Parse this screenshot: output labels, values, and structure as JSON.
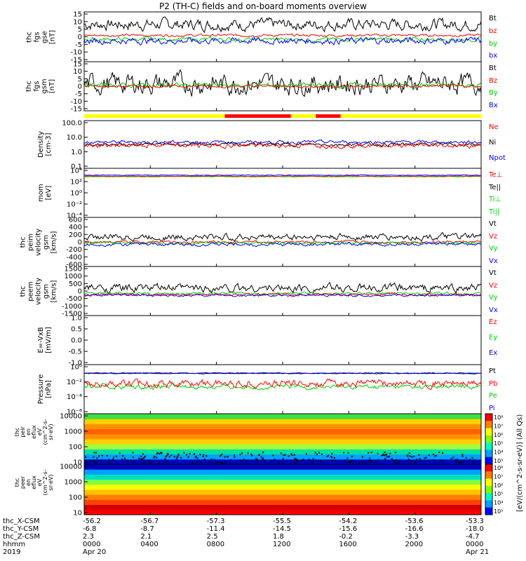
{
  "title": "P2 (TH-C) fields and on-board moments overview",
  "colors": {
    "black": "#000000",
    "red": "#ff0000",
    "green": "#00d000",
    "blue": "#0000ff",
    "yellow": "#ffff00"
  },
  "panels": [
    {
      "id": "fgs_gse",
      "ylabel": "thc\nfgs\ngse\n[nT]",
      "ticks": [
        "15",
        "10",
        "5",
        "0",
        "-5",
        "-10",
        "-15"
      ],
      "legend": [
        {
          "t": "Bt",
          "c": "black"
        },
        {
          "t": "bz",
          "c": "red"
        },
        {
          "t": "by",
          "c": "green"
        },
        {
          "t": "bx",
          "c": "blue"
        }
      ]
    },
    {
      "id": "fgs_gsm",
      "ylabel": "thc\nfgs\ngsm\n[nT]",
      "ticks": [
        "15",
        "10",
        "5",
        "0",
        "-5",
        "-10",
        "-15"
      ],
      "legend": [
        {
          "t": "Bt",
          "c": "black"
        },
        {
          "t": "Bz",
          "c": "red"
        },
        {
          "t": "By",
          "c": "green"
        },
        {
          "t": "Bx",
          "c": "blue"
        }
      ]
    },
    {
      "id": "density",
      "ylabel": "Density\n[cm-3]",
      "ticks": [
        "100.0",
        "10.0",
        "1.0",
        "0.1"
      ],
      "legend": [
        {
          "t": "Ne",
          "c": "red"
        },
        {
          "t": "Ni",
          "c": "black"
        },
        {
          "t": "Npot",
          "c": "blue"
        }
      ]
    },
    {
      "id": "temp",
      "ylabel": "mom\n[eV]",
      "ticks": [
        "10⁴",
        "10²",
        "10⁰",
        "10⁻²",
        "10⁻⁴"
      ],
      "legend": [
        {
          "t": "Te⊥",
          "c": "red"
        },
        {
          "t": "Te||",
          "c": "black"
        },
        {
          "t": "Ti⊥",
          "c": "green"
        },
        {
          "t": "Ti||",
          "c": "green"
        }
      ]
    },
    {
      "id": "peim_vel",
      "ylabel": "thc\npeim\nvelocity\ngsm\n[km/s]",
      "ticks": [
        "600",
        "400",
        "200",
        "0",
        "-200",
        "-400",
        "-600"
      ],
      "legend": [
        {
          "t": "Vt",
          "c": "black"
        },
        {
          "t": "Vz",
          "c": "red"
        },
        {
          "t": "Vy",
          "c": "green"
        },
        {
          "t": "Vx",
          "c": "blue"
        }
      ]
    },
    {
      "id": "peem_vel",
      "ylabel": "thc\npeem\nvelocity\ngsm\n[km/s]",
      "ticks": [
        "1500",
        "1000",
        "500",
        "0",
        "-500",
        "-1000",
        "-1500"
      ],
      "legend": [
        {
          "t": "Vt",
          "c": "black"
        },
        {
          "t": "Vz",
          "c": "red"
        },
        {
          "t": "Vy",
          "c": "green"
        },
        {
          "t": "Vx",
          "c": "blue"
        }
      ]
    },
    {
      "id": "efield",
      "ylabel": "E=-VxB\n[mV/m]",
      "ticks": [
        "1.0",
        "0.5",
        "0.0",
        "-0.5",
        "-1.0"
      ],
      "legend": [
        {
          "t": "Ez",
          "c": "red"
        },
        {
          "t": "Ey",
          "c": "green"
        },
        {
          "t": "Ex",
          "c": "blue"
        }
      ]
    },
    {
      "id": "pressure",
      "ylabel": "Pressure\n[nPa]",
      "ticks": [
        "10⁰",
        "10⁻²",
        "10⁻⁴",
        "10⁻⁶"
      ],
      "legend": [
        {
          "t": "Pt",
          "c": "black"
        },
        {
          "t": "Pb",
          "c": "red"
        },
        {
          "t": "Pe",
          "c": "green"
        },
        {
          "t": "Pi",
          "c": "blue"
        }
      ]
    },
    {
      "id": "peir",
      "ylabel": "thc\npeir\nen\neflux\neV\n(cm^2-s-\nsr-eV)",
      "ticks": [
        "10000",
        "1000",
        "100",
        "10"
      ],
      "legend": []
    },
    {
      "id": "peer",
      "ylabel": "thc\npeer\nen\neflux\neV\n(cm^2-s-\nsr-eV)",
      "ticks": [
        "10000",
        "1000",
        "100",
        "10"
      ],
      "legend": []
    }
  ],
  "colorbar": {
    "label": "[eV/(cm^2-s-sr-eV)] (All Qs)",
    "ticks": [
      "10⁸",
      "10⁷",
      "10⁶",
      "10⁵",
      "10⁴",
      "10³"
    ]
  },
  "footer": {
    "row_labels": [
      "thc_X-CSM",
      "thc_Y-CSM",
      "thc_Z-CSM",
      "hhmm",
      "2019"
    ],
    "columns": [
      [
        "-56.2",
        "-6.8",
        "2.3",
        "0000",
        "Apr 20"
      ],
      [
        "-56.7",
        "-8.7",
        "2.1",
        "0400",
        ""
      ],
      [
        "-57.3",
        "-11.4",
        "2.5",
        "0800",
        ""
      ],
      [
        "-55.5",
        "-14.5",
        "1.8",
        "1200",
        ""
      ],
      [
        "-54.2",
        "-15.6",
        "-0.2",
        "1600",
        ""
      ],
      [
        "-53.6",
        "-16.6",
        "-3.3",
        "2000",
        ""
      ],
      [
        "-53.3",
        "-18.0",
        "-4.7",
        "0000",
        "Apr 21"
      ]
    ]
  },
  "chart_data": {
    "type": "line",
    "title": "P2 (TH-C) fields and on-board moments overview",
    "x_ticks": [
      "0000",
      "0400",
      "0800",
      "1200",
      "1600",
      "2000",
      "0000"
    ],
    "x_range_hours": [
      0,
      24
    ],
    "series_summary": [
      {
        "panel": "fgs_gse",
        "name": "Bt",
        "approx_level": 5
      },
      {
        "panel": "fgs_gse",
        "name": "bz",
        "approx_level": 1
      },
      {
        "panel": "fgs_gse",
        "name": "by",
        "approx_level": -1
      },
      {
        "panel": "fgs_gse",
        "name": "bx",
        "approx_level": 0
      },
      {
        "panel": "density",
        "name": "Ne",
        "approx_level": 0.5
      },
      {
        "panel": "pressure",
        "name": "Pt",
        "approx_level": 0.03
      }
    ],
    "status_bar": [
      {
        "from_hour": 0,
        "to_hour": 8.5,
        "color": "yellow"
      },
      {
        "from_hour": 8.5,
        "to_hour": 12.5,
        "color": "red"
      },
      {
        "from_hour": 12.5,
        "to_hour": 14,
        "color": "yellow"
      },
      {
        "from_hour": 14,
        "to_hour": 15.5,
        "color": "red"
      },
      {
        "from_hour": 15.5,
        "to_hour": 24,
        "color": "yellow"
      }
    ]
  }
}
